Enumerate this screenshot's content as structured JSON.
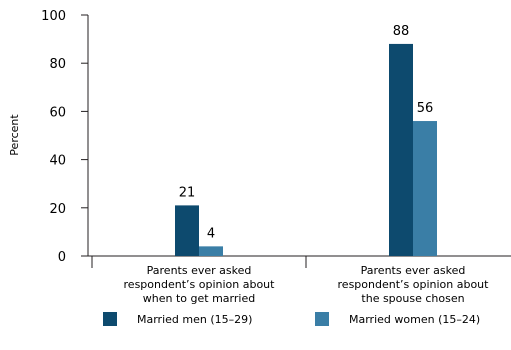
{
  "chart_data": {
    "type": "bar",
    "categories": [
      [
        "Parents ever asked",
        "respondent’s opinion about",
        "when to get married"
      ],
      [
        "Parents ever asked",
        "respondent’s opinion about",
        "the spouse chosen"
      ]
    ],
    "series": [
      {
        "name": "Married men (15–29)",
        "values": [
          21,
          88
        ],
        "color": "#0d4a6e"
      },
      {
        "name": "Married women (15–24)",
        "values": [
          4,
          56
        ],
        "color": "#3a7ea6"
      }
    ],
    "ylabel": "Percent",
    "ylim": [
      0,
      100
    ],
    "yticks": [
      0,
      20,
      40,
      60,
      80,
      100
    ],
    "data_labels": true,
    "legend_position": "bottom",
    "grid": false
  }
}
